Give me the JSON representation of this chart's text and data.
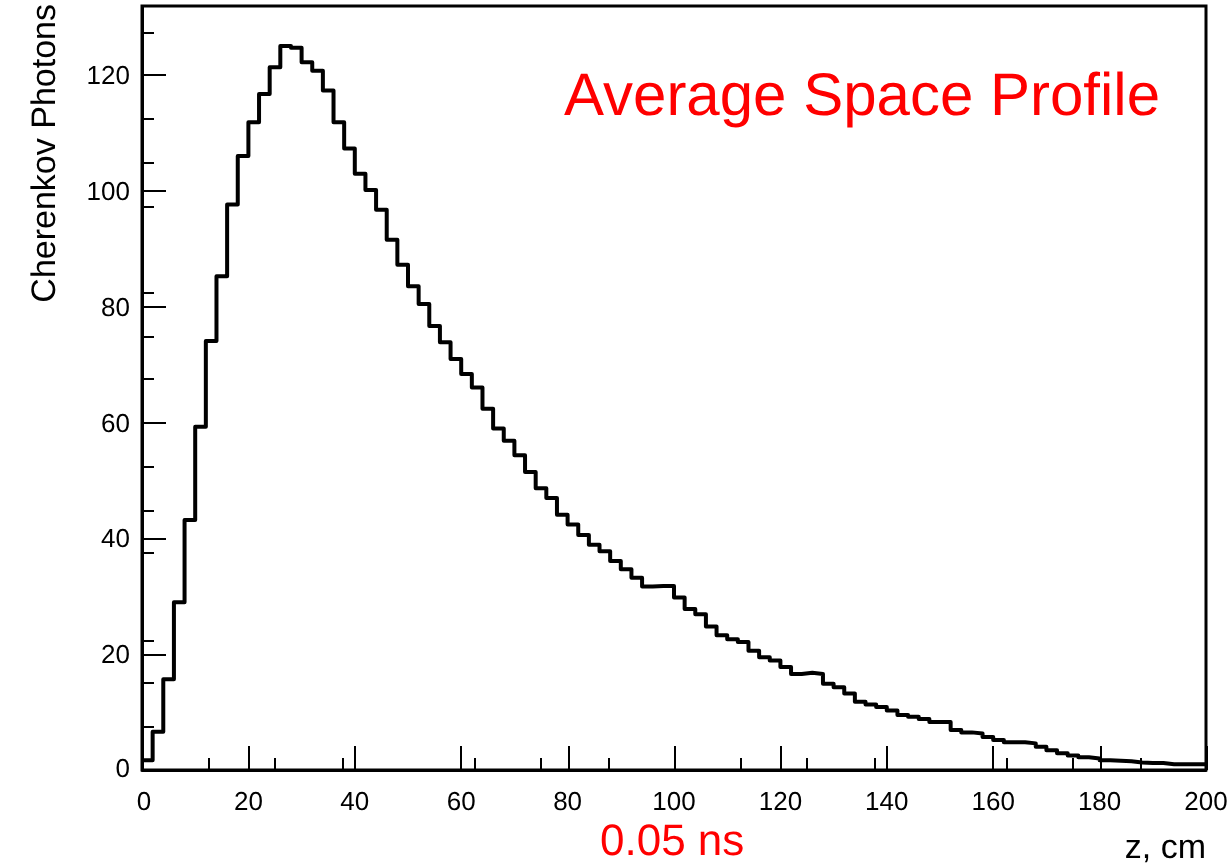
{
  "chart_data": {
    "type": "histogram",
    "title": "Average Space Profile",
    "xlabel": "z, cm",
    "ylabel": "Cherenkov Photons",
    "bins": [
      0,
      2,
      4,
      6,
      8,
      10,
      12,
      14,
      16,
      18,
      20,
      22,
      24,
      26,
      28,
      30,
      32,
      34,
      36,
      38,
      40,
      42,
      44,
      46,
      48,
      50,
      52,
      54,
      56,
      58,
      60,
      62,
      64,
      66,
      68,
      70,
      72,
      74,
      76,
      78,
      80,
      82,
      84,
      86,
      88,
      90,
      92,
      94,
      96,
      98,
      100,
      102,
      104,
      106,
      108,
      110,
      112,
      114,
      116,
      118,
      120,
      122,
      124,
      126,
      128,
      130,
      132,
      134,
      136,
      138,
      140,
      142,
      144,
      146,
      148,
      150,
      152,
      154,
      156,
      158,
      160,
      162,
      164,
      166,
      168,
      170,
      172,
      174,
      176,
      178,
      180,
      182,
      184,
      186,
      188,
      190,
      192,
      194,
      196,
      198,
      200
    ],
    "values": [
      1.7,
      6.6,
      15.7,
      29,
      43.2,
      59.3,
      74.1,
      85.3,
      97.7,
      106.1,
      111.9,
      116.8,
      121.4,
      125.1,
      124.8,
      122.3,
      120.8,
      117.4,
      111.9,
      107.4,
      103,
      100.2,
      96.8,
      91.6,
      87.3,
      83.6,
      80.5,
      76.7,
      73.9,
      71,
      68.4,
      66.1,
      62.4,
      59,
      56.9,
      54.4,
      51.5,
      48.7,
      47,
      44.1,
      42.4,
      40.6,
      38.9,
      37.8,
      36.1,
      34.7,
      33.2,
      31.7,
      31.8,
      31.8,
      29.8,
      27.8,
      26.9,
      24.8,
      23.3,
      22.6,
      22.1,
      20.6,
      19.5,
      18.9,
      17.8,
      16.6,
      16.8,
      16.6,
      14.9,
      14.3,
      13.2,
      11.8,
      11.3,
      10.9,
      10.3,
      9.5,
      9.2,
      8.8,
      8.3,
      8.3,
      6.9,
      6.5,
      6.3,
      5.7,
      5.2,
      4.8,
      4.8,
      4.6,
      4,
      3.4,
      2.9,
      2.5,
      2.2,
      2,
      1.7,
      1.6,
      1.5,
      1.3,
      1.2,
      1.2,
      1,
      1,
      1,
      1
    ],
    "color": "#000000",
    "xlim": [
      0,
      200
    ],
    "xticks": [
      0,
      20,
      40,
      60,
      80,
      100,
      120,
      140,
      160,
      180,
      200
    ],
    "ylim": [
      0,
      132
    ],
    "yticks": [
      0,
      20,
      40,
      60,
      80,
      100,
      120
    ],
    "grid": false,
    "annotations": [
      "0.05 ns"
    ]
  }
}
